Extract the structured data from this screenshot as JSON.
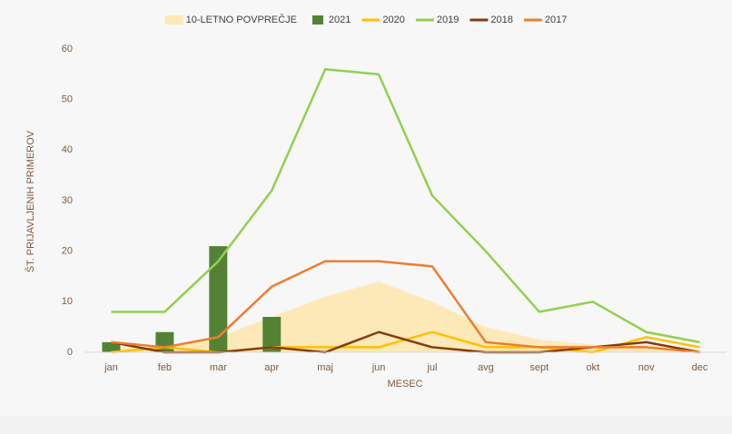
{
  "chart_data": {
    "type": "combo",
    "y_label": "ŠT. PRIJAVLJENIH PRIMEROV",
    "x_label": "MESEC",
    "categories": [
      "jan",
      "feb",
      "mar",
      "apr",
      "maj",
      "jun",
      "jul",
      "avg",
      "sept",
      "okt",
      "nov",
      "dec"
    ],
    "series": [
      {
        "name": "10-LETNO POVPREČJE",
        "type": "area",
        "color": "#fde9b8",
        "values": [
          1,
          1,
          3,
          7,
          11,
          14,
          10,
          5,
          2.5,
          1.5,
          1.5,
          0.5
        ]
      },
      {
        "name": "2021",
        "type": "bar",
        "color": "#548235",
        "values": [
          2,
          4,
          21,
          7,
          null,
          null,
          null,
          null,
          null,
          null,
          null,
          null
        ]
      },
      {
        "name": "2020",
        "type": "line",
        "color": "#ffc000",
        "values": [
          0,
          1,
          0,
          1,
          1,
          1,
          4,
          1,
          1,
          0,
          3,
          1
        ]
      },
      {
        "name": "2019",
        "type": "line",
        "color": "#92d050",
        "values": [
          8,
          8,
          18,
          32,
          56,
          55,
          31,
          20,
          8,
          10,
          4,
          2
        ]
      },
      {
        "name": "2018",
        "type": "line",
        "color": "#843c0c",
        "values": [
          2,
          0,
          0,
          1,
          0,
          4,
          1,
          0,
          0,
          1,
          2,
          0
        ]
      },
      {
        "name": "2017",
        "type": "line",
        "color": "#ed7d31",
        "values": [
          2,
          1,
          3,
          13,
          18,
          18,
          17,
          2,
          1,
          1,
          1,
          0
        ]
      }
    ],
    "ylim": [
      0,
      60
    ],
    "yticks": [
      0,
      10,
      20,
      30,
      40,
      50,
      60
    ],
    "grid": false,
    "legend": "top"
  }
}
